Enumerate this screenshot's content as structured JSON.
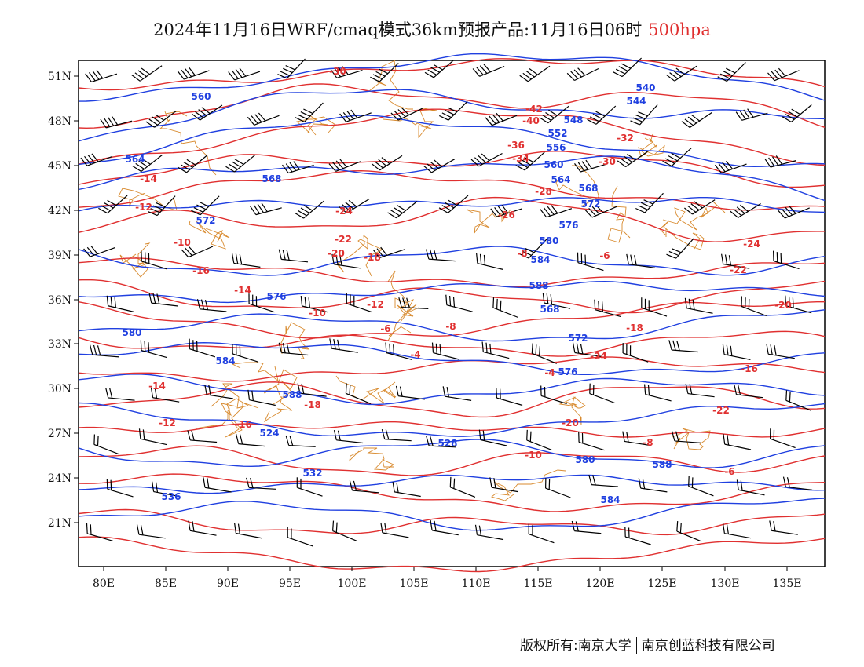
{
  "title": {
    "main": "2024年11月16日WRF/cmaq模式36km预报产品:11月16日06时",
    "level": "500hpa"
  },
  "axes": {
    "lat_ticks": [
      "51N",
      "48N",
      "45N",
      "42N",
      "39N",
      "36N",
      "33N",
      "30N",
      "27N",
      "24N",
      "21N"
    ],
    "lon_ticks": [
      "80E",
      "85E",
      "90E",
      "95E",
      "100E",
      "105E",
      "110E",
      "115E",
      "120E",
      "125E",
      "130E",
      "135E"
    ]
  },
  "colors": {
    "temperature": "#e03030",
    "geopotential": "#2040e0",
    "boundary": "#d88a2e",
    "wind": "#000000"
  },
  "temperature_labels": [
    "-30",
    "-42",
    "-40",
    "-36",
    "-34",
    "-32",
    "-30",
    "-28",
    "-26",
    "-24",
    "-22",
    "-20",
    "-18",
    "-16",
    "-14",
    "-12",
    "-10",
    "-8",
    "-6",
    "-4",
    "-24",
    "-22",
    "-20",
    "-18",
    "-16",
    "-14",
    "-12",
    "-10",
    "-8",
    "-6",
    "-24",
    "-22",
    "-20",
    "-18",
    "-16",
    "-14",
    "-12",
    "-10",
    "-8",
    "-6",
    "-4"
  ],
  "geopotential_labels": [
    "560",
    "564",
    "568",
    "572",
    "576",
    "580",
    "584",
    "588",
    "524",
    "528",
    "532",
    "536",
    "540",
    "544",
    "548",
    "552",
    "556",
    "560",
    "564",
    "568",
    "572",
    "576",
    "580",
    "584",
    "588",
    "568",
    "572",
    "576",
    "580",
    "584",
    "588"
  ],
  "footer": {
    "left": "版权所有:南京大学",
    "right": "南京创蓝科技有限公司"
  }
}
